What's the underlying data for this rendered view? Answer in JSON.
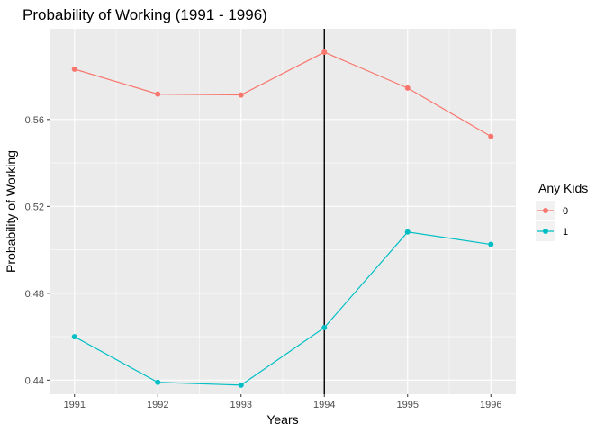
{
  "chart_data": {
    "type": "line",
    "title": "Probability of Working (1991 - 1996)",
    "xlabel": "Years",
    "ylabel": "Probability of Working",
    "x": [
      1991,
      1992,
      1993,
      1994,
      1995,
      1996
    ],
    "xticks": [
      "1991",
      "1992",
      "1993",
      "1994",
      "1995",
      "1996"
    ],
    "yticks": [
      "0.44",
      "0.48",
      "0.52",
      "0.56"
    ],
    "ylim": [
      0.4335,
      0.6018
    ],
    "xlim": [
      1990.7,
      1996.3
    ],
    "vline_x": 1994,
    "grid": true,
    "legend": {
      "title": "Any Kids",
      "position": "right"
    },
    "series": [
      {
        "name": "0",
        "color": "#F8766D",
        "values": [
          0.5832,
          0.5717,
          0.5713,
          0.591,
          0.5745,
          0.5522
        ]
      },
      {
        "name": "1",
        "color": "#00BFC4",
        "values": [
          0.46,
          0.439,
          0.4377,
          0.4642,
          0.5082,
          0.5025
        ]
      }
    ],
    "panel_color": "#EBEBEB",
    "grid_color": "#FFFFFF",
    "vline_color": "#000000"
  }
}
